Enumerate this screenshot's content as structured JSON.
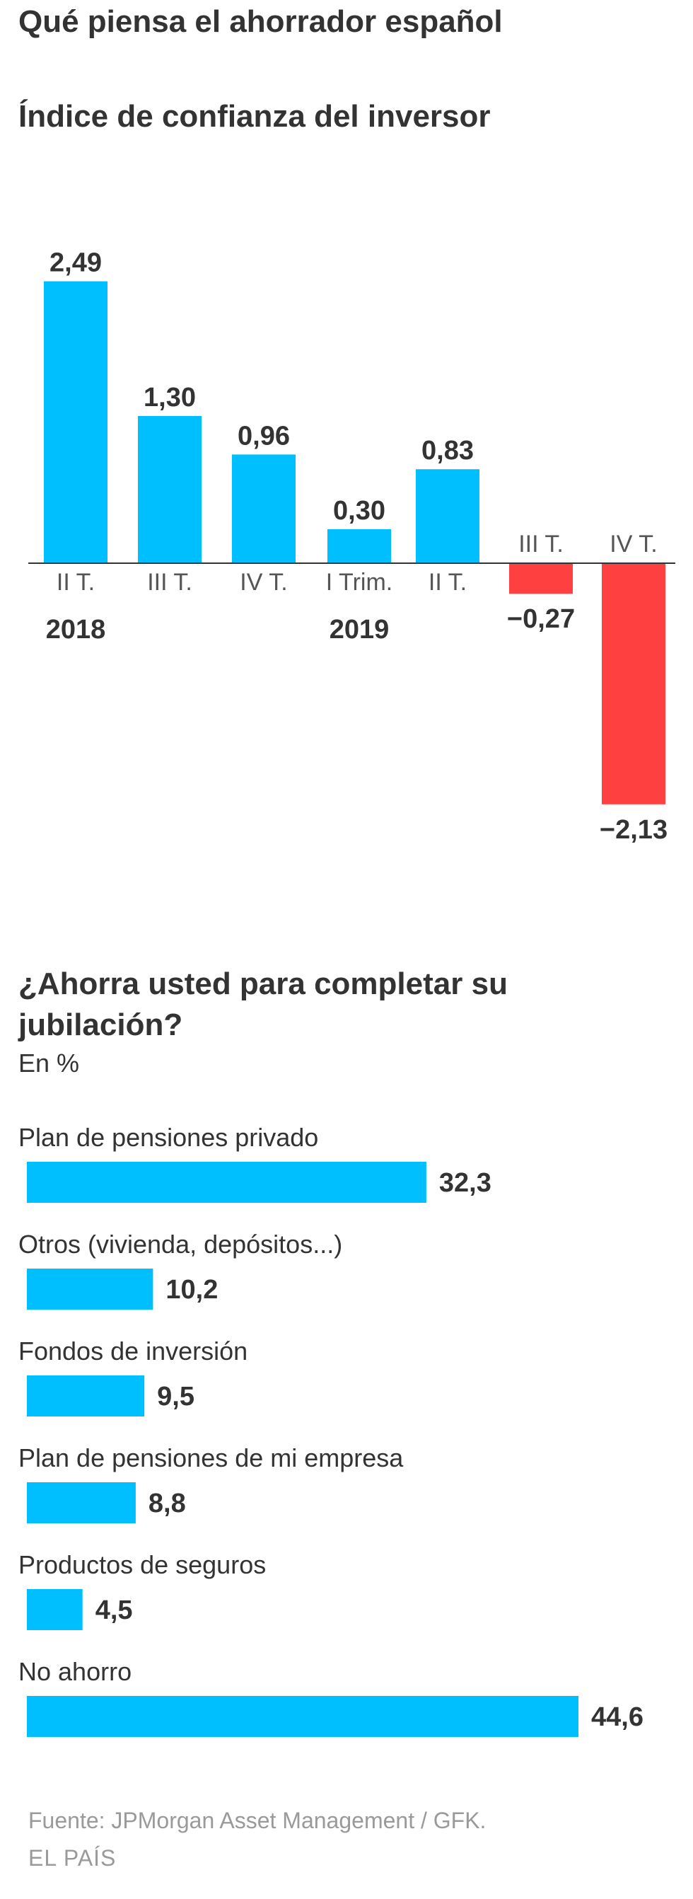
{
  "header": {
    "title": "Qué piensa el ahorrador español"
  },
  "chart_data": [
    {
      "type": "bar",
      "title": "Índice de confianza del inversor",
      "categories": [
        "II T.",
        "III T.",
        "IV T.",
        "I Trim.",
        "II T.",
        "III T.",
        "IV T."
      ],
      "year_labels": [
        {
          "label": "2018",
          "category_index": 0
        },
        {
          "label": "2019",
          "category_index": 3
        }
      ],
      "values": [
        2.49,
        1.3,
        0.96,
        0.3,
        0.83,
        -0.27,
        -2.13
      ],
      "value_labels": [
        "2,49",
        "1,30",
        "0,96",
        "0,30",
        "0,83",
        "−0,27",
        "−2,13"
      ],
      "positive_color": "#00BFFF",
      "negative_color": "#FF4040",
      "ylim": [
        -2.13,
        2.49
      ],
      "xlabel": "",
      "ylabel": ""
    },
    {
      "type": "bar",
      "orientation": "horizontal",
      "title": "¿Ahorra usted para completar su jubilación?",
      "unit": "En %",
      "categories": [
        "Plan de pensiones privado",
        "Otros (vivienda, depósitos...)",
        "Fondos de inversión",
        "Plan de pensiones de mi empresa",
        "Productos de seguros",
        "No ahorro"
      ],
      "values": [
        32.3,
        10.2,
        9.5,
        8.8,
        4.5,
        44.6
      ],
      "value_labels": [
        "32,3",
        "10,2",
        "9,5",
        "8,8",
        "4,5",
        "44,6"
      ],
      "bar_color": "#00BFFF",
      "xlim": [
        0,
        44.6
      ]
    }
  ],
  "footer": {
    "source": "Fuente: JPMorgan Asset Management / GFK.",
    "brand": "EL PAÍS"
  }
}
